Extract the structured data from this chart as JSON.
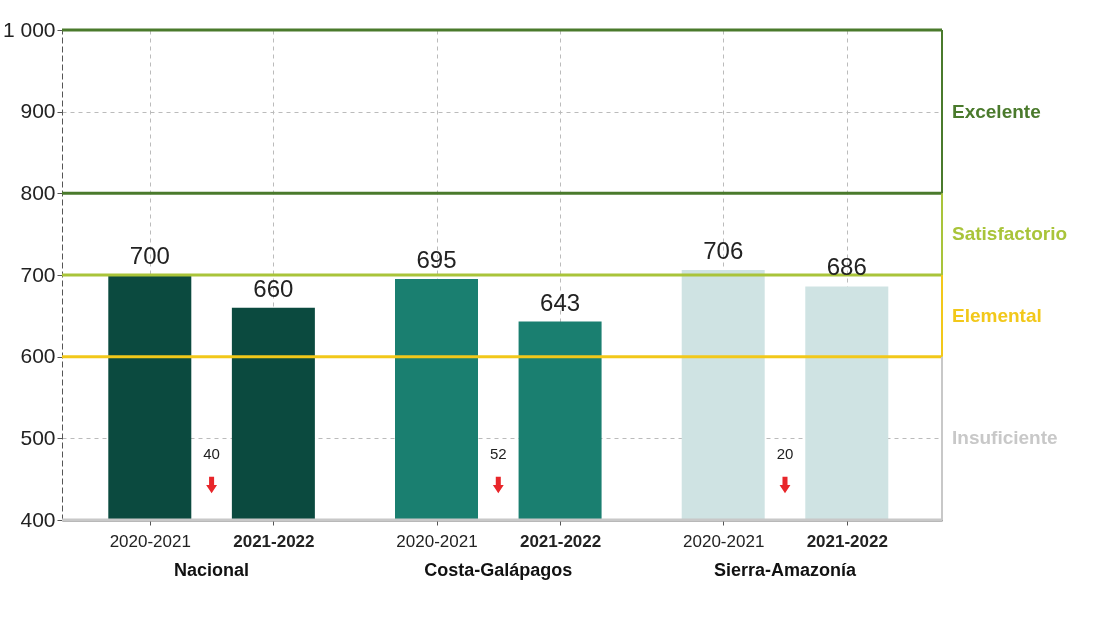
{
  "chart_data": {
    "type": "bar",
    "categories": [
      "2020-2021",
      "2021-2022",
      "2020-2021",
      "2021-2022",
      "2020-2021",
      "2021-2022"
    ],
    "values": [
      700,
      660,
      695,
      643,
      706,
      686
    ],
    "colors": [
      "#0b4a3f",
      "#0b4a3f",
      "#1a7f70",
      "#1a7f70",
      "#cfe3e3",
      "#cfe3e3"
    ],
    "data_labels": true,
    "ylim": [
      400,
      1000
    ],
    "yticks": [
      400,
      500,
      600,
      700,
      800,
      900,
      {
        "value": 1000,
        "label": "1 000"
      }
    ],
    "grid": true,
    "ref_lines": [
      {
        "axis": "y",
        "value": 1000,
        "color": "#4a7a2c"
      },
      {
        "axis": "y",
        "value": 800,
        "color": "#4a7a2c"
      },
      {
        "axis": "y",
        "value": 700,
        "color": "#a9c43a"
      },
      {
        "axis": "y",
        "value": 600,
        "color": "#f2c81a"
      },
      {
        "axis": "y",
        "value": 400,
        "color": "#c8c8c8"
      }
    ],
    "annotations": [
      "Nacional",
      "Costa-Galápagos",
      "Sierra-Amazonía",
      "40",
      "52",
      "20",
      "Excelente",
      "Satisfactorio",
      "Elemental",
      "Insuficiente"
    ]
  }
}
